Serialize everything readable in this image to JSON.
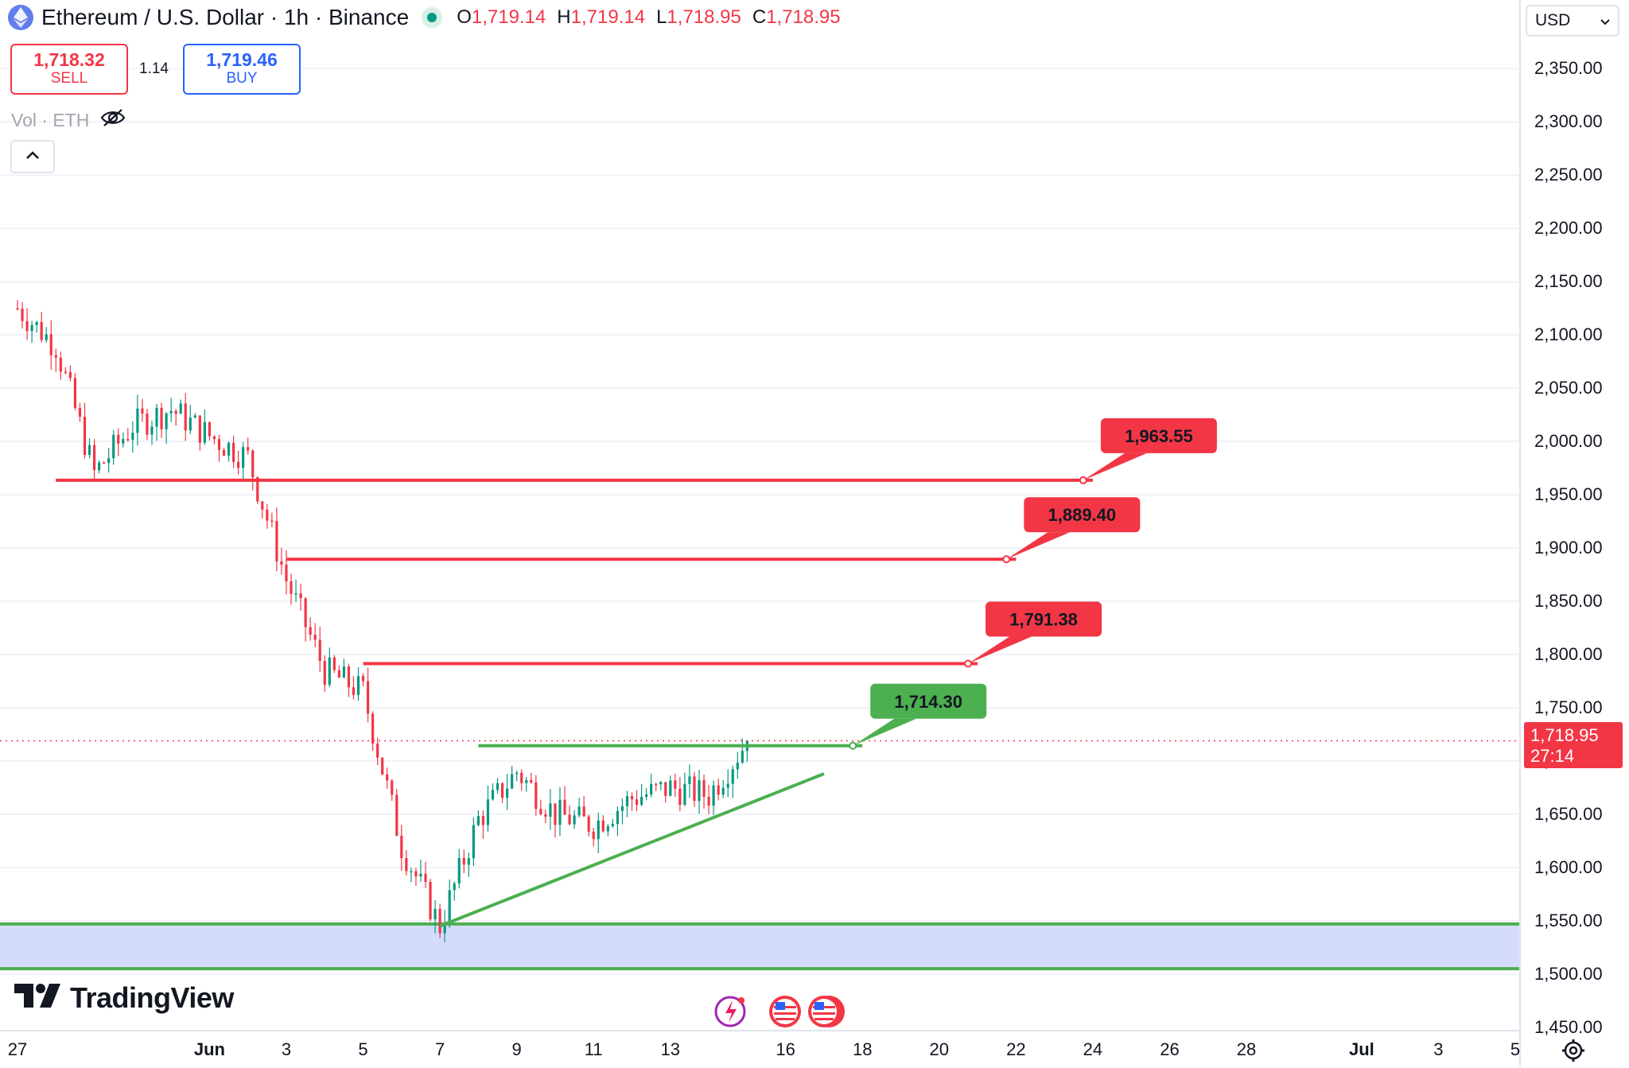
{
  "header": {
    "title": "Ethereum / U.S. Dollar · 1h · Binance",
    "ohlc": [
      {
        "label": "O",
        "value": "1,719.14"
      },
      {
        "label": "H",
        "value": "1,719.14"
      },
      {
        "label": "L",
        "value": "1,718.95"
      },
      {
        "label": "C",
        "value": "1,718.95"
      }
    ]
  },
  "trade": {
    "sell_price": "1,718.32",
    "sell_label": "SELL",
    "spread": "1.14",
    "buy_price": "1,719.46",
    "buy_label": "BUY"
  },
  "volume_label": "Vol · ETH",
  "currency": "USD",
  "brand": "TradingView",
  "price_tag": {
    "price": "1,718.95",
    "countdown": "27:14"
  },
  "colors": {
    "up": "#089981",
    "down": "#f23645",
    "support": "#4caf50",
    "resistance": "#f23645",
    "zone": "#d5dcfb",
    "accent": "#2962ff"
  },
  "icons": {
    "eye_hidden": "eye-off-icon",
    "collapse": "chevron-up-icon",
    "settings": "gear-icon",
    "logo": "tradingview-logo-icon",
    "events": "lightning-icon",
    "flags": "us-flag-icon"
  },
  "chart_data": {
    "type": "candlestick",
    "title": "Ethereum / U.S. Dollar · 1h · Binance",
    "xlabel": "",
    "ylabel": "",
    "y_axis_ticks": [
      "2,350.00",
      "2,300.00",
      "2,250.00",
      "2,200.00",
      "2,150.00",
      "2,100.00",
      "2,050.00",
      "2,000.00",
      "1,950.00",
      "1,900.00",
      "1,850.00",
      "1,800.00",
      "1,750.00",
      "1,700.00",
      "1,650.00",
      "1,600.00",
      "1,550.00",
      "1,500.00",
      "1,450.00"
    ],
    "y_axis_values": [
      2350,
      2300,
      2250,
      2200,
      2150,
      2100,
      2050,
      2000,
      1950,
      1900,
      1850,
      1800,
      1750,
      1700,
      1650,
      1600,
      1550,
      1500,
      1450
    ],
    "x_axis_ticks": [
      {
        "label": "27",
        "date": "2022-05-27",
        "bold": false
      },
      {
        "label": "Jun",
        "date": "2022-06-01",
        "bold": true
      },
      {
        "label": "3",
        "date": "2022-06-03",
        "bold": false
      },
      {
        "label": "5",
        "date": "2022-06-05",
        "bold": false
      },
      {
        "label": "7",
        "date": "2022-06-07",
        "bold": false
      },
      {
        "label": "9",
        "date": "2022-06-09",
        "bold": false
      },
      {
        "label": "11",
        "date": "2022-06-11",
        "bold": false
      },
      {
        "label": "13",
        "date": "2022-06-13",
        "bold": false
      },
      {
        "label": "16",
        "date": "2022-06-16",
        "bold": false
      },
      {
        "label": "18",
        "date": "2022-06-18",
        "bold": false
      },
      {
        "label": "20",
        "date": "2022-06-20",
        "bold": false
      },
      {
        "label": "22",
        "date": "2022-06-22",
        "bold": false
      },
      {
        "label": "24",
        "date": "2022-06-24",
        "bold": false
      },
      {
        "label": "26",
        "date": "2022-06-26",
        "bold": false
      },
      {
        "label": "28",
        "date": "2022-06-28",
        "bold": false
      },
      {
        "label": "Jul",
        "date": "2022-07-01",
        "bold": true
      },
      {
        "label": "3",
        "date": "2022-07-03",
        "bold": false
      },
      {
        "label": "5",
        "date": "2022-07-05",
        "bold": false
      }
    ],
    "price_path": [
      {
        "date": "2022-05-27",
        "price": 2125
      },
      {
        "date": "2022-05-28",
        "price": 2090
      },
      {
        "date": "2022-05-29",
        "price": 1970
      },
      {
        "date": "2022-05-30",
        "price": 2015
      },
      {
        "date": "2022-05-31",
        "price": 2030
      },
      {
        "date": "2022-06-01",
        "price": 2005
      },
      {
        "date": "2022-06-02",
        "price": 1985
      },
      {
        "date": "2022-06-03",
        "price": 1870
      },
      {
        "date": "2022-06-04",
        "price": 1785
      },
      {
        "date": "2022-06-05",
        "price": 1765
      },
      {
        "date": "2022-06-06",
        "price": 1620
      },
      {
        "date": "2022-06-07",
        "price": 1545
      },
      {
        "date": "2022-06-08",
        "price": 1645
      },
      {
        "date": "2022-06-09",
        "price": 1690
      },
      {
        "date": "2022-06-10",
        "price": 1650
      },
      {
        "date": "2022-06-11",
        "price": 1640
      },
      {
        "date": "2022-06-12",
        "price": 1665
      },
      {
        "date": "2022-06-13",
        "price": 1675
      },
      {
        "date": "2022-06-14",
        "price": 1668
      },
      {
        "date": "2022-06-15",
        "price": 1718.95
      }
    ],
    "last_price": 1718.95,
    "resistance_levels": [
      {
        "label": "1,963.55",
        "value": 1963.55,
        "start": "2022-05-28",
        "end": "2022-06-24"
      },
      {
        "label": "1,889.40",
        "value": 1889.4,
        "start": "2022-06-03",
        "end": "2022-06-22"
      },
      {
        "label": "1,791.38",
        "value": 1791.38,
        "start": "2022-06-05",
        "end": "2022-06-21"
      }
    ],
    "breakout_level": {
      "label": "1,714.30",
      "value": 1714.3,
      "start": "2022-06-08",
      "end": "2022-06-18"
    },
    "support_trendline": {
      "start_date": "2022-06-07",
      "start_price": 1545,
      "end_date": "2022-06-17",
      "end_price": 1688
    },
    "support_zone": {
      "low": 1505,
      "high": 1547
    },
    "grid": true
  }
}
